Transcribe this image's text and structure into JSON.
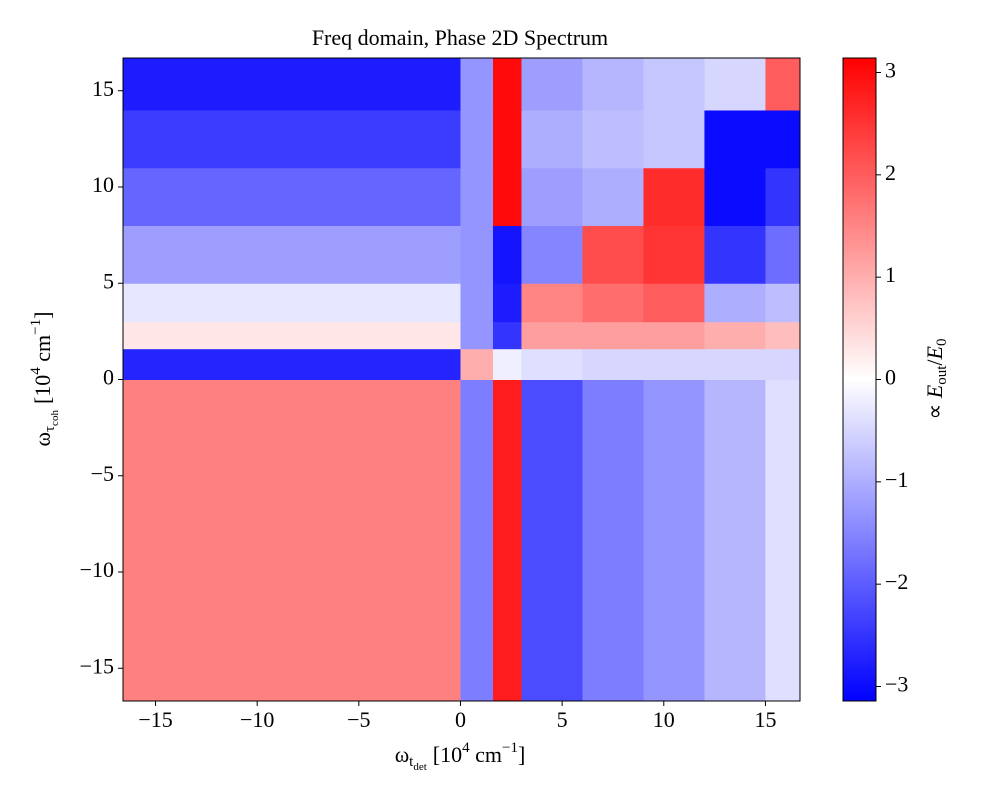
{
  "chart_data": {
    "type": "heatmap",
    "title": "Freq domain, Phase 2D Spectrum",
    "xlabel": {
      "symbol": "ω",
      "sub": "t",
      "subsub": "det",
      "unit": "[10",
      "exp": "4",
      "unit2": " cm",
      "exp2": "−1",
      "close": "]"
    },
    "ylabel": {
      "symbol": "ω",
      "sub": "τ",
      "subsub": "coh",
      "unit": "[10",
      "exp": "4",
      "unit2": " cm",
      "exp2": "−1",
      "close": "]"
    },
    "colorbar_label": {
      "prefix": "∝ ",
      "main": "E",
      "sub": "out",
      "slash": "/",
      "main2": "E",
      "sub2": "0"
    },
    "colormap": "bwr",
    "xlim": [
      -16.6,
      16.7
    ],
    "ylim": [
      -16.7,
      16.7
    ],
    "clim": [
      -3.1416,
      3.1416
    ],
    "xticks": [
      {
        "value": -15,
        "label": "−15"
      },
      {
        "value": -10,
        "label": "−10"
      },
      {
        "value": -5,
        "label": "−5"
      },
      0,
      5,
      10,
      15
    ],
    "yticks": [
      {
        "value": -15,
        "label": "−15"
      },
      {
        "value": -10,
        "label": "−10"
      },
      {
        "value": -5,
        "label": "−5"
      },
      0,
      5,
      10,
      15
    ],
    "cticks": [
      {
        "value": -3,
        "label": "−3"
      },
      {
        "value": -2,
        "label": "−2"
      },
      {
        "value": -1,
        "label": "−1"
      },
      0,
      1,
      2,
      3
    ],
    "x_edges": [
      -16.6,
      0,
      1.6,
      3,
      6,
      9,
      12,
      15,
      16.7
    ],
    "y_edges": [
      -16.7,
      0,
      1.6,
      3,
      5,
      8,
      11,
      14,
      16.7
    ],
    "z": [
      [
        1.57,
        -1.6,
        2.8,
        -2.2,
        -1.6,
        -1.3,
        -0.9,
        -0.4
      ],
      [
        -2.7,
        1.0,
        -0.2,
        -0.4,
        -0.5,
        -0.5,
        -0.5,
        -0.5
      ],
      [
        0.3,
        -1.3,
        -2.5,
        1.2,
        1.2,
        1.2,
        1.0,
        0.8
      ],
      [
        -0.3,
        -1.3,
        -2.8,
        1.5,
        1.8,
        2.0,
        -1.0,
        -0.8
      ],
      [
        -1.2,
        -1.3,
        -2.9,
        -1.5,
        2.2,
        2.5,
        -2.5,
        -1.8
      ],
      [
        -1.9,
        -1.3,
        3.0,
        -1.2,
        -1.0,
        2.6,
        -3.0,
        -2.5
      ],
      [
        -2.4,
        -1.3,
        3.0,
        -1.0,
        -0.8,
        -0.7,
        -3.0,
        -3.0
      ],
      [
        -2.8,
        -1.3,
        3.0,
        -1.2,
        -0.9,
        -0.7,
        -0.5,
        2.0
      ]
    ]
  }
}
